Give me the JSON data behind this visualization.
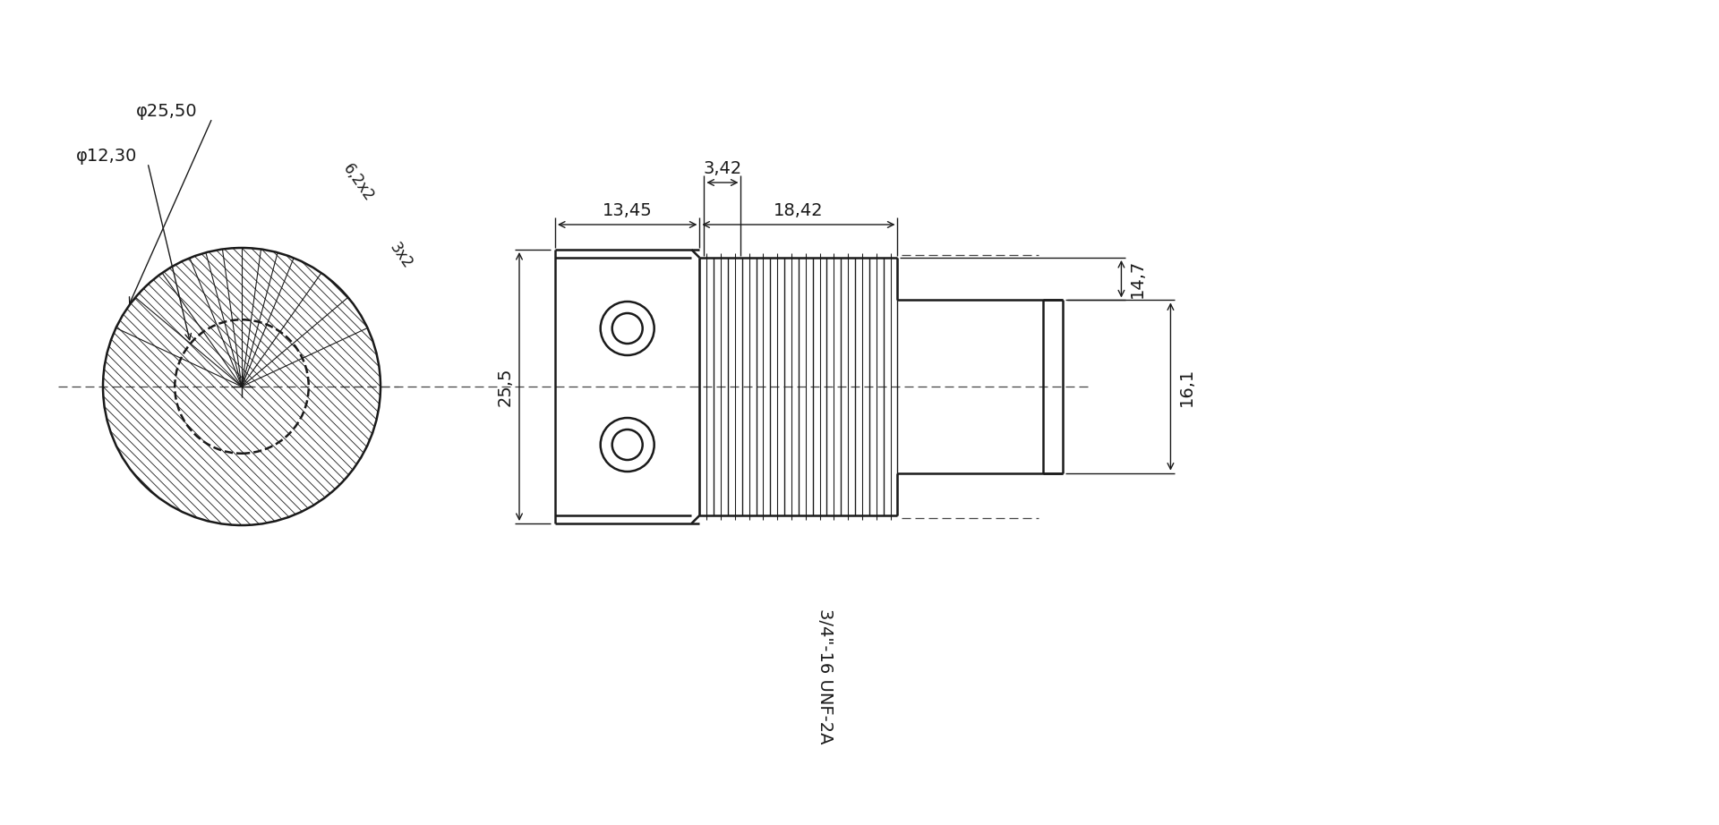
{
  "bg_color": "#ffffff",
  "line_color": "#1a1a1a",
  "fig_width": 19.2,
  "fig_height": 9.22,
  "dpi": 100,
  "annotations": {
    "phi_2550": "φ25,50",
    "phi_1230": "φ12,30",
    "dim_6x2": "6,2x2",
    "dim_3x2": "3x2",
    "dim_1345": "13,45",
    "dim_1842": "18,42",
    "dim_342": "3,42",
    "dim_255": "25,5",
    "dim_147": "14,7",
    "dim_161": "16,1",
    "thread": "3/4\"-16 UNF-2A"
  }
}
